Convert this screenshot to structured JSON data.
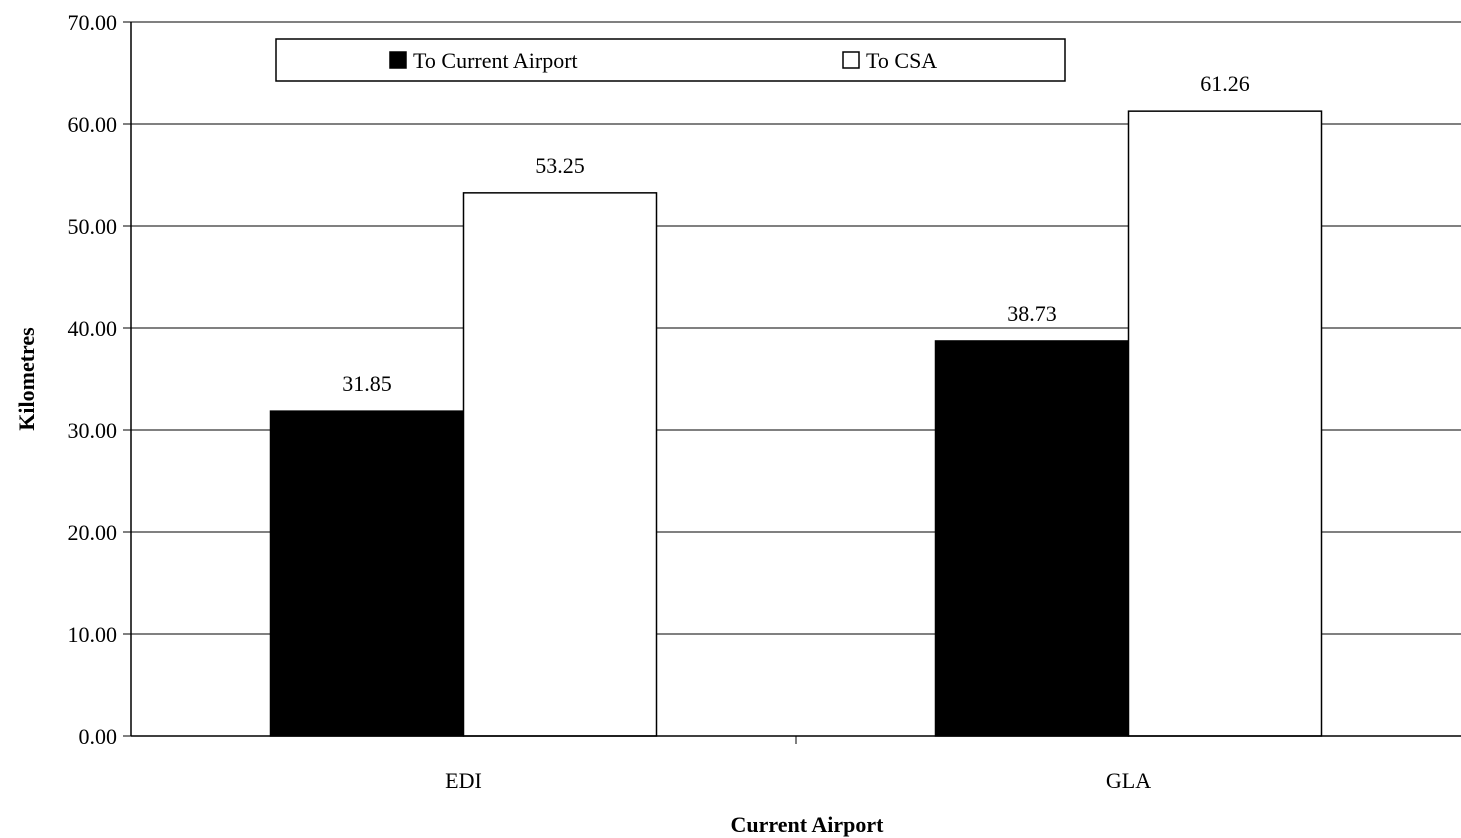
{
  "chart_data": {
    "type": "bar",
    "categories": [
      "EDI",
      "GLA"
    ],
    "series": [
      {
        "name": "To Current Airport",
        "values": [
          31.85,
          38.73
        ],
        "color": "#000000"
      },
      {
        "name": "To CSA",
        "values": [
          53.25,
          61.26
        ],
        "color": "#ffffff"
      }
    ],
    "data_labels": [
      [
        "31.85",
        "38.73"
      ],
      [
        "53.25",
        "61.26"
      ]
    ],
    "title": "",
    "xlabel": "Current Airport",
    "ylabel": "Kilometres",
    "ylim": [
      0,
      70
    ],
    "yticks": [
      "0.00",
      "10.00",
      "20.00",
      "30.00",
      "40.00",
      "50.00",
      "60.00",
      "70.00"
    ],
    "grid": true,
    "legend_position": "top"
  }
}
